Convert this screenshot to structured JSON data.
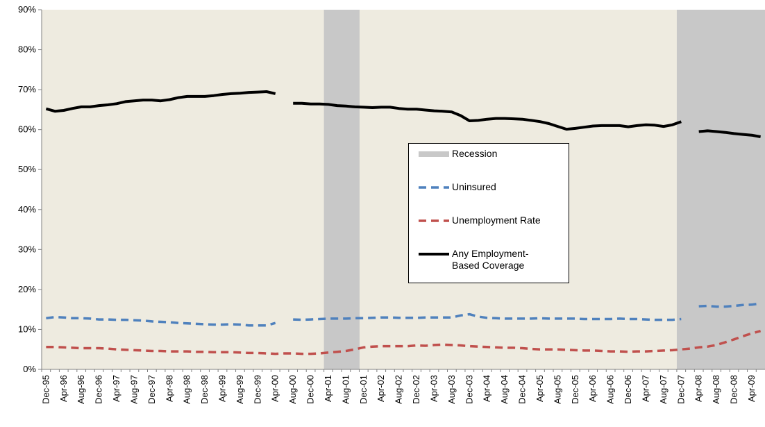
{
  "chart_data": {
    "type": "line",
    "categories": [
      "Dec-95",
      null,
      "Apr-96",
      null,
      "Aug-96",
      null,
      "Dec-96",
      null,
      "Apr-97",
      null,
      "Aug-97",
      null,
      "Dec-97",
      null,
      "Apr-98",
      null,
      "Aug-98",
      null,
      "Dec-98",
      null,
      "Apr-99",
      null,
      "Aug-99",
      null,
      "Dec-99",
      null,
      "Apr-00",
      null,
      "Aug-00",
      null,
      "Dec-00",
      null,
      "Apr-01",
      null,
      "Aug-01",
      null,
      "Dec-01",
      null,
      "Apr-02",
      null,
      "Aug-02",
      null,
      "Dec-02",
      null,
      "Apr-03",
      null,
      "Aug-03",
      null,
      "Dec-03",
      null,
      "Apr-04",
      null,
      "Aug-04",
      null,
      "Dec-04",
      null,
      "Apr-05",
      null,
      "Aug-05",
      null,
      "Dec-05",
      null,
      "Apr-06",
      null,
      "Aug-06",
      null,
      "Dec-06",
      null,
      "Apr-07",
      null,
      "Aug-07",
      null,
      "Dec-07",
      null,
      "Apr-08",
      null,
      "Aug-08",
      null,
      "Dec-08",
      null,
      "Apr-09",
      null
    ],
    "series": [
      {
        "name": "Recession",
        "type": "bar",
        "color": "#c8c8c8",
        "values": [
          null,
          null,
          null,
          null,
          null,
          null,
          null,
          null,
          null,
          null,
          null,
          null,
          null,
          null,
          null,
          null,
          null,
          null,
          null,
          null,
          null,
          null,
          null,
          null,
          null,
          null,
          null,
          null,
          null,
          null,
          null,
          null,
          90,
          90,
          90,
          90,
          null,
          null,
          null,
          null,
          null,
          null,
          null,
          null,
          null,
          null,
          null,
          null,
          null,
          null,
          null,
          null,
          null,
          null,
          null,
          null,
          null,
          null,
          null,
          null,
          null,
          null,
          null,
          null,
          null,
          null,
          null,
          null,
          null,
          null,
          null,
          null,
          90,
          90,
          90,
          90,
          90,
          90,
          90,
          90,
          90,
          90
        ]
      },
      {
        "name": "Uninsured",
        "type": "line",
        "style": "dashed",
        "color": "#4f81bd",
        "values": [
          12.8,
          13.1,
          13.0,
          12.8,
          12.8,
          12.7,
          12.5,
          12.5,
          12.4,
          12.4,
          12.3,
          12.2,
          12.0,
          11.9,
          11.8,
          11.6,
          11.5,
          11.4,
          11.3,
          11.2,
          11.2,
          11.3,
          11.2,
          11.0,
          11.0,
          11.0,
          11.6,
          null,
          12.5,
          12.4,
          12.5,
          12.6,
          12.7,
          12.7,
          12.7,
          12.8,
          12.8,
          12.9,
          13.0,
          13.0,
          12.9,
          12.9,
          12.9,
          13.0,
          13.0,
          13.0,
          13.0,
          13.5,
          13.8,
          13.2,
          12.9,
          12.8,
          12.7,
          12.7,
          12.7,
          12.7,
          12.8,
          12.7,
          12.7,
          12.7,
          12.7,
          12.6,
          12.6,
          12.6,
          12.6,
          12.7,
          12.6,
          12.6,
          12.5,
          12.4,
          12.4,
          12.4,
          12.6,
          null,
          15.8,
          15.9,
          15.7,
          15.7,
          15.9,
          16.1,
          16.2,
          16.5
        ]
      },
      {
        "name": "Unemployment Rate",
        "type": "line",
        "style": "dashed",
        "color": "#c0504d",
        "values": [
          5.6,
          5.6,
          5.5,
          5.4,
          5.3,
          5.3,
          5.3,
          5.2,
          5.0,
          4.9,
          4.8,
          4.7,
          4.6,
          4.6,
          4.5,
          4.5,
          4.5,
          4.4,
          4.4,
          4.3,
          4.3,
          4.3,
          4.2,
          4.1,
          4.1,
          4.0,
          3.9,
          4.0,
          4.0,
          3.9,
          3.9,
          4.0,
          4.2,
          4.4,
          4.6,
          5.0,
          5.5,
          5.7,
          5.8,
          5.8,
          5.8,
          5.8,
          6.0,
          5.9,
          6.1,
          6.2,
          6.1,
          6.0,
          5.8,
          5.7,
          5.6,
          5.5,
          5.4,
          5.4,
          5.3,
          5.1,
          5.0,
          5.0,
          5.0,
          4.9,
          4.8,
          4.7,
          4.7,
          4.6,
          4.5,
          4.5,
          4.4,
          4.5,
          4.5,
          4.6,
          4.7,
          4.8,
          5.0,
          5.2,
          5.5,
          5.7,
          6.1,
          6.8,
          7.5,
          8.3,
          9.0,
          9.6
        ]
      },
      {
        "name": "Any Employment-Based Coverage",
        "type": "line",
        "style": "solid",
        "color": "#000000",
        "values": [
          65.2,
          64.6,
          64.8,
          65.3,
          65.7,
          65.7,
          66.0,
          66.2,
          66.5,
          67.0,
          67.2,
          67.4,
          67.4,
          67.2,
          67.5,
          68.0,
          68.3,
          68.3,
          68.3,
          68.5,
          68.8,
          69.0,
          69.1,
          69.3,
          69.4,
          69.5,
          69.0,
          null,
          66.6,
          66.6,
          66.4,
          66.4,
          66.3,
          66.0,
          65.9,
          65.7,
          65.6,
          65.5,
          65.6,
          65.6,
          65.3,
          65.1,
          65.1,
          64.9,
          64.7,
          64.6,
          64.4,
          63.5,
          62.2,
          62.3,
          62.6,
          62.8,
          62.8,
          62.7,
          62.6,
          62.3,
          62.0,
          61.5,
          60.8,
          60.1,
          60.3,
          60.6,
          60.9,
          61.0,
          61.0,
          61.0,
          60.7,
          61.0,
          61.2,
          61.1,
          60.8,
          61.2,
          62.0,
          null,
          59.5,
          59.7,
          59.5,
          59.3,
          59.0,
          58.8,
          58.6,
          58.2
        ]
      }
    ],
    "ylim": [
      0,
      90
    ],
    "yticks": [
      {
        "value": 0,
        "label": "0%"
      },
      {
        "value": 10,
        "label": "10%"
      },
      {
        "value": 20,
        "label": "20%"
      },
      {
        "value": 30,
        "label": "30%"
      },
      {
        "value": 40,
        "label": "40%"
      },
      {
        "value": 50,
        "label": "50%"
      },
      {
        "value": 60,
        "label": "60%"
      },
      {
        "value": 70,
        "label": "70%"
      },
      {
        "value": 80,
        "label": "80%"
      },
      {
        "value": 90,
        "label": "90%"
      }
    ],
    "grid": false,
    "plot_background": "#eeebe0"
  }
}
